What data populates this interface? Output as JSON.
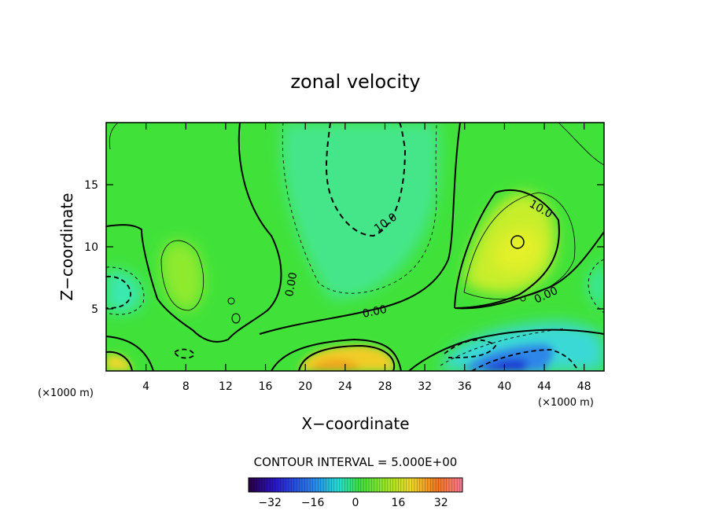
{
  "chart_data": {
    "type": "heatmap",
    "subtype": "filled-contour",
    "title": "zonal velocity",
    "xlabel": "X−coordinate",
    "ylabel": "Z−coordinate",
    "x_unit_left": "(×1000 m)",
    "x_unit_right": "(×1000 m)",
    "xlim": [
      0,
      50
    ],
    "ylim": [
      0,
      20
    ],
    "x_ticks": [
      4,
      8,
      12,
      16,
      20,
      24,
      28,
      32,
      36,
      40,
      44,
      48
    ],
    "x_tick_labels": [
      "4",
      "8",
      "12",
      "16",
      "20",
      "24",
      "28",
      "32",
      "36",
      "40",
      "44",
      "48"
    ],
    "y_ticks": [
      5,
      10,
      15
    ],
    "y_tick_labels": [
      "5",
      "10",
      "15"
    ],
    "contour_interval_text": "CONTOUR INTERVAL = 5.000E+00",
    "contour_labels": [
      "10.0",
      "10.0",
      "0.00",
      "0.00",
      "0.00"
    ],
    "colorbar": {
      "range": [
        -40,
        40
      ],
      "ticks": [
        -32,
        -16,
        0,
        16,
        32
      ],
      "tick_labels": [
        "−32",
        "−16",
        "0",
        "16",
        "32"
      ]
    },
    "field_features": [
      {
        "kind": "negative core",
        "x": 26,
        "z": 15,
        "value": -10
      },
      {
        "kind": "positive core",
        "x": 41,
        "z": 10,
        "value": 15
      },
      {
        "kind": "positive surface jet",
        "x": 23,
        "z": 0.5,
        "value": 15
      },
      {
        "kind": "negative surface jet",
        "x": 40,
        "z": 0.5,
        "value": -25
      },
      {
        "kind": "negative lobe",
        "x": 1,
        "z": 6.5,
        "value": -8
      },
      {
        "kind": "negative lobe",
        "x": 49,
        "z": 6,
        "value": -8
      }
    ]
  },
  "colors": {
    "background_field": "#3fe23a",
    "cyan_region": "#37e9b8",
    "yellow_region": "#d0f02a",
    "blue_core": "#1b39d6",
    "orange_core": "#f2a61b"
  }
}
